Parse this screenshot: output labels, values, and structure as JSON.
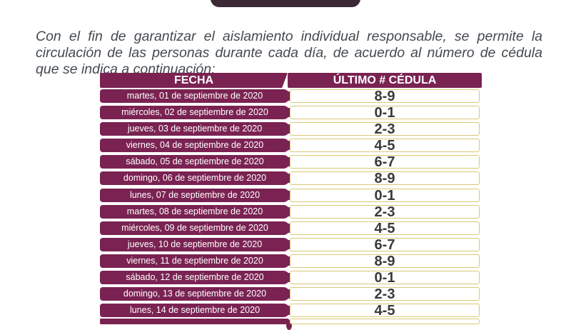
{
  "intro": "Con el fin de garantizar el aislamiento individual responsable, se permite la circulación de las personas durante cada día, de acuerdo al número de cédula que se indica a continuación:",
  "table": {
    "headers": {
      "fecha": "FECHA",
      "cedula": "ÚLTIMO # CÉDULA"
    },
    "rows": [
      {
        "fecha": "martes, 01 de septiembre de 2020",
        "cedula": "8-9"
      },
      {
        "fecha": "miércoles, 02 de septiembre de 2020",
        "cedula": "0-1"
      },
      {
        "fecha": "jueves, 03 de septiembre de 2020",
        "cedula": "2-3"
      },
      {
        "fecha": "viernes, 04 de septiembre de 2020",
        "cedula": "4-5"
      },
      {
        "fecha": "sábado, 05 de septiembre de 2020",
        "cedula": "6-7"
      },
      {
        "fecha": "domingo, 06 de septiembre de 2020",
        "cedula": "8-9"
      },
      {
        "fecha": "lunes, 07 de septiembre de 2020",
        "cedula": "0-1"
      },
      {
        "fecha": "martes, 08 de septiembre de 2020",
        "cedula": "2-3"
      },
      {
        "fecha": "miércoles, 09 de septiembre de 2020",
        "cedula": "4-5"
      },
      {
        "fecha": "jueves, 10 de septiembre de 2020",
        "cedula": "6-7"
      },
      {
        "fecha": "viernes, 11 de septiembre de 2020",
        "cedula": "8-9"
      },
      {
        "fecha": "sábado, 12 de septiembre de 2020",
        "cedula": "0-1"
      },
      {
        "fecha": "domingo, 13 de septiembre de 2020",
        "cedula": "2-3"
      },
      {
        "fecha": "lunes, 14 de septiembre de 2020",
        "cedula": "4-5"
      }
    ]
  },
  "colors": {
    "accent": "#7a2352",
    "banner": "#3b2a35",
    "cell_border": "#d9c877",
    "text": "#444a50"
  }
}
